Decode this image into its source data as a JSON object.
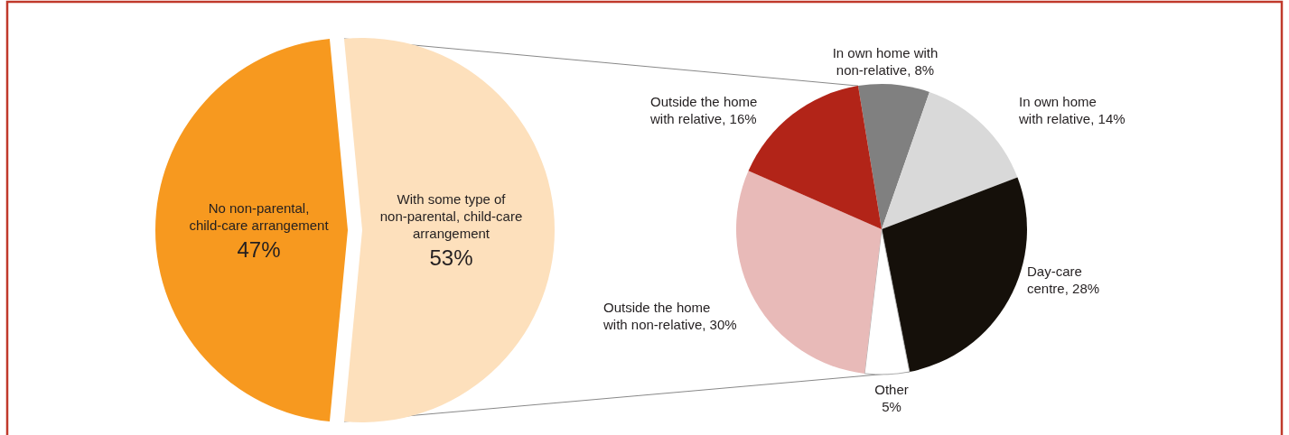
{
  "chart_data": [
    {
      "type": "pie",
      "categories": [
        "No non-parental,\nchild-care arrangement",
        "With some type of\nnon-parental, child-care\narrangement"
      ],
      "values": [
        47,
        53
      ],
      "colors": [
        "#f7991f",
        "#fde0bc"
      ],
      "value_labels": [
        "47%",
        "53%"
      ]
    },
    {
      "type": "pie",
      "categories": [
        "In own home with\nnon-relative",
        "In own home\nwith relative",
        "Day-care\ncentre",
        "Other",
        "Outside the home\nwith non-relative",
        "Outside the home\nwith relative"
      ],
      "values": [
        8,
        14,
        28,
        5,
        30,
        16
      ],
      "colors": [
        "#808080",
        "#d9d9d9",
        "#15100a",
        "#ffffff",
        "#e8bab8",
        "#b22418"
      ],
      "value_labels": [
        ", 8%",
        ", 14%",
        ", 28%",
        "5%",
        ", 30%",
        ", 16%"
      ]
    }
  ]
}
